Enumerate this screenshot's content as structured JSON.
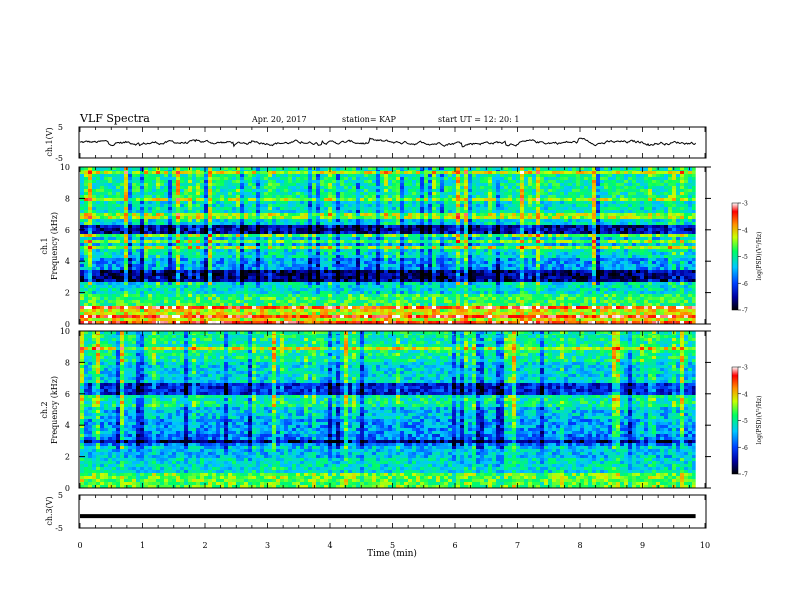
{
  "header": {
    "title": "VLF Spectra",
    "date": "Apr. 20, 2017",
    "station": "station= KAP",
    "start": "start  UT =   12: 20: 1"
  },
  "chart_data": [
    {
      "type": "line",
      "panel": "ch1-waveform",
      "ylabel": "ch.1(V)",
      "ylim": [
        -5,
        5
      ],
      "yticks": [
        "5",
        "-5"
      ],
      "xlim": [
        0,
        10
      ],
      "description_of_trace": "noisy waveform around 0 V",
      "y_min_approx": -1.5,
      "y_max_approx": 1.5
    },
    {
      "type": "heatmap",
      "panel": "ch1-spectrogram",
      "ylabel": "ch.1\nFrequency (kHz)",
      "ylabel_top": "ch.1",
      "ylabel_bottom": "Frequency (kHz)",
      "ylim": [
        0,
        10
      ],
      "yticks": [
        "0",
        "2",
        "4",
        "6",
        "8",
        "10"
      ],
      "xlim": [
        0,
        9.85
      ],
      "colorbar": {
        "label": "log(PSD)(V²/Hz)",
        "range": [
          -7,
          -3
        ],
        "ticks": [
          "-3",
          "-4",
          "-5",
          "-6",
          "-7"
        ]
      },
      "bands_kHz": [
        {
          "from": 0.0,
          "to": 1.2,
          "level": -4.2
        },
        {
          "from": 1.2,
          "to": 2.0,
          "level": -4.8
        },
        {
          "from": 2.0,
          "to": 2.6,
          "level": -5.2
        },
        {
          "from": 2.6,
          "to": 3.4,
          "level": -6.6
        },
        {
          "from": 3.4,
          "to": 4.2,
          "level": -5.6
        },
        {
          "from": 4.2,
          "to": 5.0,
          "level": -5.2
        },
        {
          "from": 5.0,
          "to": 5.8,
          "level": -5.4
        },
        {
          "from": 5.8,
          "to": 6.3,
          "level": -6.5
        },
        {
          "from": 6.3,
          "to": 8.0,
          "level": -5.2
        },
        {
          "from": 8.0,
          "to": 10.0,
          "level": -5.0
        }
      ]
    },
    {
      "type": "heatmap",
      "panel": "ch2-spectrogram",
      "ylabel_top": "ch.2",
      "ylabel_bottom": "Frequency (kHz)",
      "ylim": [
        0,
        10
      ],
      "yticks": [
        "0",
        "2",
        "4",
        "6",
        "8",
        "10"
      ],
      "xlim": [
        0,
        9.85
      ],
      "colorbar": {
        "label": "log(PSD)(V²/Hz)",
        "range": [
          -7,
          -3
        ],
        "ticks": [
          "-3",
          "-4",
          "-5",
          "-6",
          "-7"
        ]
      },
      "bands_kHz": [
        {
          "from": 0.0,
          "to": 1.0,
          "level": -4.6
        },
        {
          "from": 1.0,
          "to": 2.0,
          "level": -5.2
        },
        {
          "from": 2.0,
          "to": 2.6,
          "level": -5.4
        },
        {
          "from": 2.6,
          "to": 3.4,
          "level": -6.6
        },
        {
          "from": 3.4,
          "to": 4.4,
          "level": -5.6
        },
        {
          "from": 4.4,
          "to": 5.2,
          "level": -5.4
        },
        {
          "from": 5.2,
          "to": 6.0,
          "level": -5.0
        },
        {
          "from": 6.0,
          "to": 6.6,
          "level": -6.2
        },
        {
          "from": 6.6,
          "to": 8.0,
          "level": -5.3
        },
        {
          "from": 8.0,
          "to": 10.0,
          "level": -5.0
        }
      ]
    },
    {
      "type": "line",
      "panel": "ch3-waveform",
      "ylabel": "ch.3(V)",
      "ylim": [
        -5,
        5
      ],
      "yticks": [
        "5",
        "-5"
      ],
      "xlim": [
        0,
        10
      ],
      "xlabel": "Time  (min)",
      "xticks": [
        "0",
        "1",
        "2",
        "3",
        "4",
        "5",
        "6",
        "7",
        "8",
        "9",
        "10"
      ],
      "constant_value": -1.5,
      "trace_end_x": 9.85
    }
  ]
}
